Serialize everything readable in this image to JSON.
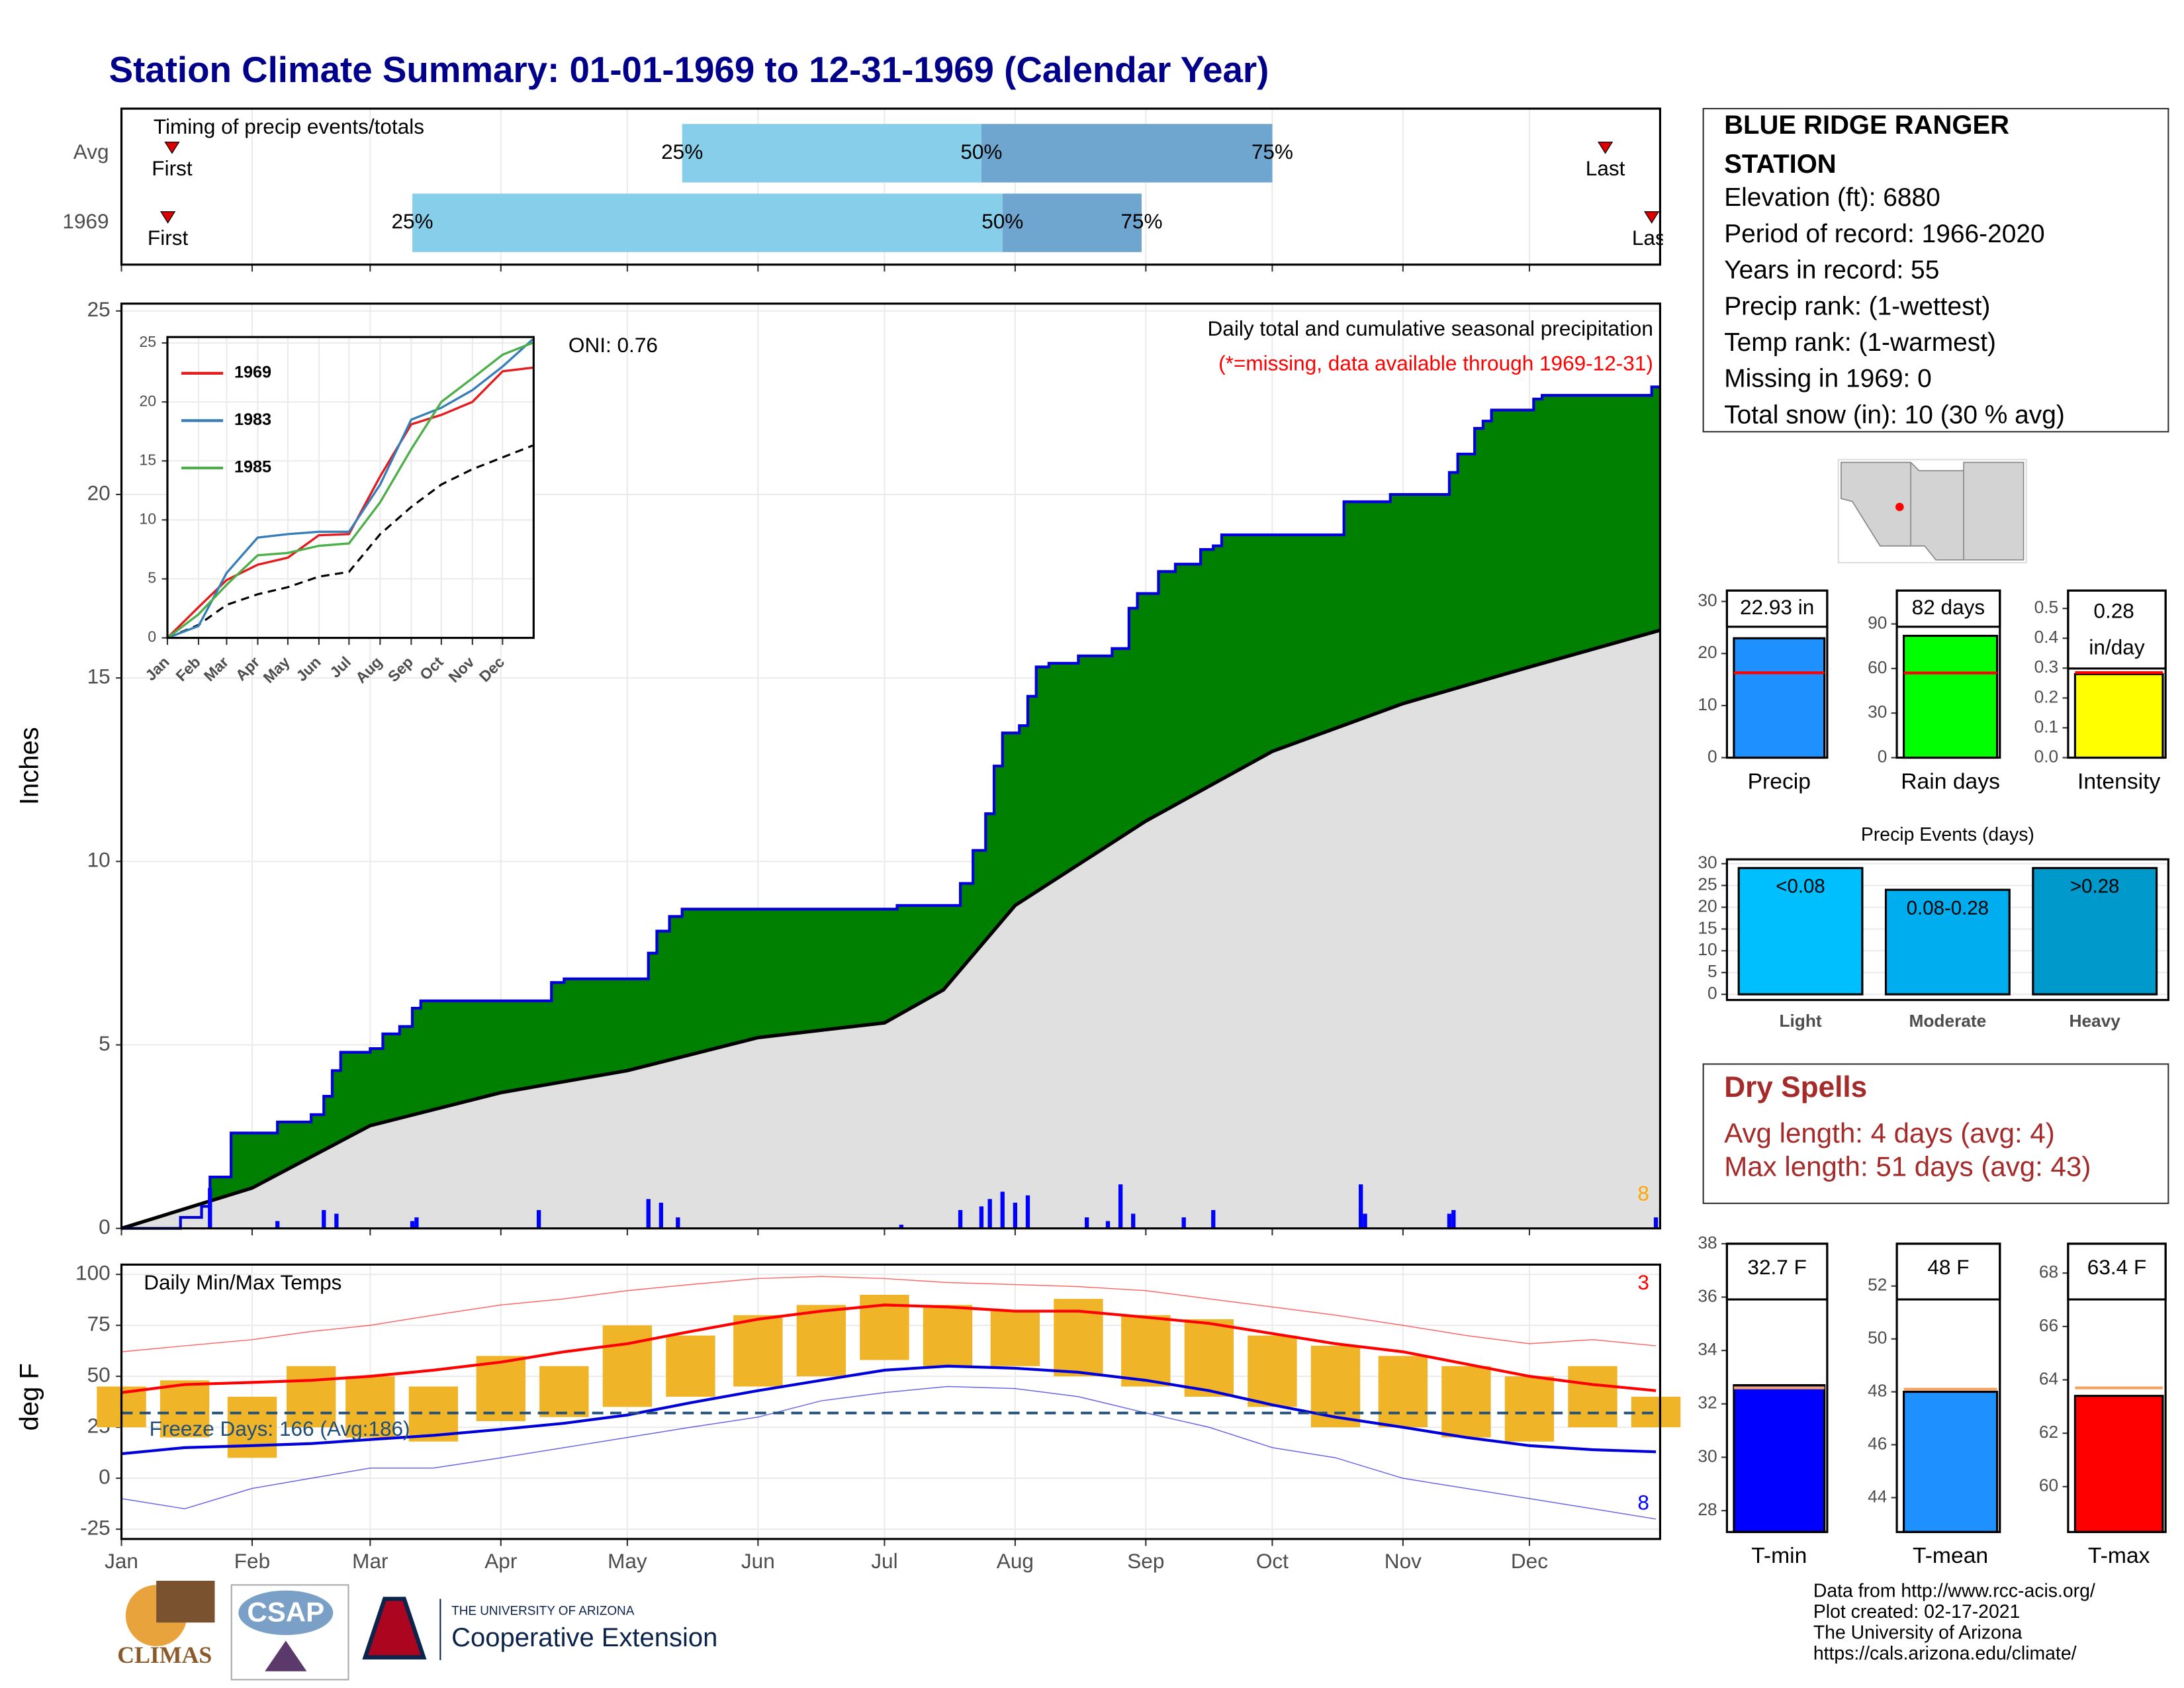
{
  "title": "Station Climate Summary: 01-01-1969 to 12-31-1969 (Calendar Year)",
  "chart_data": [
    {
      "type": "timing",
      "title": "Timing of precip events/totals",
      "rows": [
        "Avg",
        "1969"
      ],
      "first": [
        13,
        12
      ],
      "q25": [
        134,
        70
      ],
      "q50": [
        205,
        210
      ],
      "q75": [
        274,
        243
      ],
      "last": [
        353,
        364
      ],
      "labels": {
        "first": "First",
        "last": "Last",
        "q25": "25%",
        "q50": "50%",
        "q75": "75%"
      },
      "colors": {
        "lower": "#87ceeb",
        "upper": "#6fa6cf",
        "marker": "#dd0000"
      },
      "xlim": [
        1,
        366
      ],
      "xticks": [
        1,
        32,
        60,
        91,
        121,
        152,
        182,
        213,
        244,
        274,
        305,
        335
      ]
    },
    {
      "type": "area",
      "title": "Daily total and cumulative seasonal precipitation",
      "subtitle": "(*=missing, data available through 1969-12-31)",
      "annotation": "ONI: 0.76",
      "ylabel": "Inches",
      "extreme_count": 8,
      "xlim": [
        1,
        366
      ],
      "xticks": [
        1,
        32,
        60,
        91,
        121,
        152,
        182,
        213,
        244,
        274,
        305,
        335
      ],
      "ylim": [
        0,
        25.2
      ],
      "yticks": [
        0,
        5,
        10,
        15,
        20,
        25
      ],
      "grid": true,
      "cumulative": {
        "color": "#008000",
        "line": "#0000dd",
        "x": [
          1,
          15,
          20,
          22,
          27,
          38,
          46,
          49,
          51,
          53,
          60,
          63,
          67,
          70,
          72,
          101,
          103,
          106,
          123,
          126,
          128,
          131,
          134,
          185,
          198,
          200,
          203,
          206,
          208,
          210,
          214,
          216,
          218,
          221,
          228,
          236,
          240,
          242,
          247,
          251,
          257,
          260,
          262,
          289,
          291,
          300,
          302,
          314,
          316,
          318,
          322,
          324,
          326,
          336,
          338,
          362,
          364
        ],
        "values": [
          0,
          0.3,
          0.6,
          1.4,
          2.6,
          2.9,
          3.1,
          3.6,
          4.3,
          4.8,
          4.9,
          5.3,
          5.5,
          6.0,
          6.2,
          6.2,
          6.7,
          6.8,
          6.8,
          7.5,
          8.1,
          8.5,
          8.7,
          8.8,
          8.8,
          9.4,
          10.3,
          11.3,
          12.6,
          13.5,
          13.7,
          14.5,
          15.3,
          15.4,
          15.6,
          15.8,
          16.9,
          17.3,
          17.9,
          18.1,
          18.5,
          18.6,
          18.9,
          18.9,
          19.8,
          19.8,
          20.0,
          20.0,
          20.6,
          21.1,
          21.8,
          22.0,
          22.3,
          22.6,
          22.7,
          22.7,
          22.93
        ]
      },
      "average": {
        "color": "#e0e0e0",
        "line": "#000000",
        "x": [
          1,
          32,
          60,
          91,
          121,
          152,
          182,
          196,
          213,
          244,
          274,
          305,
          335,
          366
        ],
        "values": [
          0,
          1.1,
          2.8,
          3.7,
          4.3,
          5.2,
          5.6,
          6.5,
          8.8,
          11.1,
          13.0,
          14.3,
          15.3,
          16.3
        ]
      },
      "daily": {
        "color": "#0000ff",
        "x": [
          22,
          38,
          49,
          52,
          70,
          71,
          100,
          126,
          129,
          133,
          186,
          200,
          205,
          207,
          210,
          213,
          216,
          230,
          235,
          238,
          241,
          253,
          260,
          295,
          296,
          316,
          317,
          365
        ],
        "values": [
          1.1,
          0.2,
          0.5,
          0.4,
          0.2,
          0.3,
          0.5,
          0.8,
          0.7,
          0.3,
          0.1,
          0.5,
          0.6,
          0.8,
          1.0,
          0.7,
          0.9,
          0.3,
          0.2,
          1.2,
          0.4,
          0.3,
          0.5,
          1.2,
          0.4,
          0.4,
          0.5,
          0.3
        ]
      }
    },
    {
      "type": "line",
      "xlim": [
        1,
        366
      ],
      "xticks": [
        {
          "value": 1,
          "label": "Jan"
        },
        {
          "value": 32,
          "label": "Feb"
        },
        {
          "value": 60,
          "label": "Mar"
        },
        {
          "value": 91,
          "label": "Apr"
        },
        {
          "value": 121,
          "label": "May"
        },
        {
          "value": 152,
          "label": "Jun"
        },
        {
          "value": 182,
          "label": "Jul"
        },
        {
          "value": 213,
          "label": "Aug"
        },
        {
          "value": 244,
          "label": "Sep"
        },
        {
          "value": 274,
          "label": "Oct"
        },
        {
          "value": 305,
          "label": "Nov"
        },
        {
          "value": 335,
          "label": "Dec"
        }
      ],
      "ylim": [
        0,
        25.5
      ],
      "yticks": [
        0,
        5,
        10,
        15,
        20,
        25
      ],
      "grid": true,
      "x": [
        1,
        32,
        60,
        91,
        121,
        152,
        182,
        213,
        244,
        274,
        305,
        335,
        365
      ],
      "series": [
        {
          "name": "1969",
          "color": "#e41a1c",
          "values": [
            0,
            2.6,
            4.9,
            6.2,
            6.8,
            8.7,
            8.8,
            13.7,
            18.1,
            18.9,
            20.0,
            22.6,
            22.9
          ]
        },
        {
          "name": "1983",
          "color": "#377eb8",
          "values": [
            0,
            1.0,
            5.5,
            8.5,
            8.8,
            9.0,
            9.0,
            13,
            18.5,
            19.5,
            21,
            23,
            25.3
          ]
        },
        {
          "name": "1985",
          "color": "#4daf4a",
          "values": [
            0,
            2.0,
            4.5,
            7.0,
            7.2,
            7.8,
            8.0,
            11.5,
            16,
            20,
            22,
            24,
            25.0
          ]
        }
      ],
      "average": {
        "color": "#000000",
        "values": [
          0,
          1.1,
          2.8,
          3.7,
          4.3,
          5.2,
          5.6,
          8.8,
          11.1,
          13.0,
          14.3,
          15.3,
          16.3
        ]
      }
    },
    {
      "type": "range",
      "title": "Daily Min/Max Temps",
      "ylabel": "deg F",
      "ylim": [
        -29.8,
        104.8
      ],
      "yticks": [
        -25,
        0,
        25,
        50,
        75,
        100
      ],
      "grid": true,
      "xlim": [
        1,
        366
      ],
      "xticks": [
        {
          "value": 1,
          "label": "Jan"
        },
        {
          "value": 32,
          "label": "Feb"
        },
        {
          "value": 60,
          "label": "Mar"
        },
        {
          "value": 91,
          "label": "Apr"
        },
        {
          "value": 121,
          "label": "May"
        },
        {
          "value": 152,
          "label": "Jun"
        },
        {
          "value": 182,
          "label": "Jul"
        },
        {
          "value": 213,
          "label": "Aug"
        },
        {
          "value": 244,
          "label": "Sep"
        },
        {
          "value": 274,
          "label": "Oct"
        },
        {
          "value": 305,
          "label": "Nov"
        },
        {
          "value": 335,
          "label": "Dec"
        }
      ],
      "x": [
        1,
        16,
        32,
        46,
        60,
        75,
        91,
        106,
        121,
        136,
        152,
        167,
        182,
        197,
        213,
        228,
        244,
        259,
        274,
        289,
        305,
        320,
        335,
        350,
        365
      ],
      "tmax": [
        45,
        48,
        40,
        55,
        50,
        45,
        60,
        55,
        75,
        70,
        80,
        85,
        90,
        85,
        82,
        88,
        80,
        78,
        70,
        65,
        60,
        55,
        50,
        55,
        40
      ],
      "tmin": [
        25,
        20,
        10,
        25,
        20,
        18,
        28,
        30,
        35,
        40,
        45,
        50,
        58,
        55,
        55,
        50,
        45,
        40,
        35,
        25,
        25,
        20,
        18,
        25,
        25
      ],
      "avg_max": [
        42,
        46,
        47,
        48,
        50,
        53,
        57,
        62,
        66,
        72,
        78,
        82,
        85,
        84,
        82,
        82,
        79,
        76,
        71,
        66,
        62,
        56,
        50,
        46,
        43
      ],
      "avg_min": [
        12,
        15,
        16,
        17,
        19,
        21,
        24,
        27,
        31,
        37,
        43,
        48,
        53,
        55,
        54,
        52,
        48,
        43,
        36,
        30,
        25,
        20,
        16,
        14,
        13
      ],
      "record_high": [
        62,
        65,
        68,
        72,
        75,
        80,
        85,
        88,
        92,
        95,
        98,
        99,
        98,
        96,
        95,
        94,
        92,
        88,
        84,
        80,
        75,
        70,
        66,
        68,
        65
      ],
      "record_low": [
        -10,
        -15,
        -5,
        0,
        5,
        5,
        10,
        15,
        20,
        25,
        30,
        38,
        42,
        45,
        44,
        40,
        32,
        25,
        15,
        10,
        0,
        -5,
        -10,
        -15,
        -20
      ],
      "colors": {
        "bar": "#f0b429",
        "max": "#ff0000",
        "min": "#0000dd",
        "freeze": "#1f4e79"
      },
      "freeze": {
        "value": 32,
        "label": "Freeze Days: 166 (Avg:186)"
      },
      "record_high_count": 3,
      "record_low_count": 8
    },
    {
      "type": "bar",
      "categories": [
        "Precip"
      ],
      "values": [
        22.93
      ],
      "value_labels": [
        "22.93 in"
      ],
      "average": 16.3,
      "color": "#1e90ff",
      "ylim": [
        0,
        32.1
      ],
      "yticks": [
        0,
        10,
        20,
        30
      ]
    },
    {
      "type": "bar",
      "categories": [
        "Rain days"
      ],
      "values": [
        82
      ],
      "value_labels": [
        "82 days"
      ],
      "average": 57,
      "color": "#00ff00",
      "ylim": [
        0,
        112.5
      ],
      "yticks": [
        0,
        30,
        60,
        90
      ]
    },
    {
      "type": "bar",
      "categories": [
        "Intensity"
      ],
      "values": [
        0.28
      ],
      "value_labels": [
        "0.28 in/day"
      ],
      "average": 0.285,
      "color": "#ffff00",
      "ylim": [
        0,
        0.56
      ],
      "yticks": [
        {
          "value": 0,
          "label": "0.0"
        },
        0.1,
        0.2,
        0.3,
        0.4,
        0.5
      ]
    },
    {
      "type": "bar",
      "title": "Precip Events (days)",
      "categories": [
        "Light",
        "Moderate",
        "Heavy"
      ],
      "bin_labels": [
        "<0.08",
        "0.08-0.28",
        ">0.28"
      ],
      "values": [
        29,
        24,
        29
      ],
      "colors": [
        "#00bfff",
        "#00aeef",
        "#0099cc"
      ],
      "ylim": [
        -1.3,
        31
      ],
      "yticks": [
        0,
        5,
        10,
        15,
        20,
        25,
        30
      ],
      "grid": true
    },
    {
      "type": "bar",
      "categories": [
        "T-min"
      ],
      "values": [
        32.7
      ],
      "value_labels": [
        "32.7 F"
      ],
      "average": 32.6,
      "color": "#0000ff",
      "ylim": [
        27.2,
        38
      ],
      "yticks": [
        28,
        30,
        32,
        34,
        36,
        38
      ]
    },
    {
      "type": "bar",
      "categories": [
        "T-mean"
      ],
      "values": [
        48
      ],
      "value_labels": [
        "48 F"
      ],
      "average": 48.1,
      "color": "#1e90ff",
      "ylim": [
        42.7,
        53.6
      ],
      "yticks": [
        44,
        46,
        48,
        50,
        52
      ]
    },
    {
      "type": "bar",
      "categories": [
        "T-max"
      ],
      "values": [
        63.4
      ],
      "value_labels": [
        "63.4 F"
      ],
      "average": 63.7,
      "color": "#ff0000",
      "ylim": [
        58.3,
        69.1
      ],
      "yticks": [
        60,
        62,
        64,
        66,
        68
      ]
    }
  ],
  "station": {
    "name_lines": [
      "BLUE RIDGE RANGER",
      "STATION"
    ],
    "info": [
      "Elevation (ft): 6880",
      "Period of record: 1966-2020",
      "Years in record: 55",
      "Precip rank:  (1-wettest)",
      "Temp rank:  (1-warmest)",
      "Missing in 1969: 0",
      "Total snow (in): 10 (30 % avg)"
    ]
  },
  "dry_spells": {
    "title": "Dry Spells",
    "lines": [
      "Avg length: 4 days (avg: 4)",
      "Max length: 51 days (avg: 43)"
    ]
  },
  "logos": [
    "CLIMAS",
    "CSAP",
    "THE UNIVERSITY OF ARIZONA",
    "Cooperative Extension"
  ],
  "credits": [
    "Data from http://www.rcc-acis.org/",
    "Plot created: 02-17-2021",
    "The University of Arizona",
    "https://cals.arizona.edu/climate/"
  ]
}
